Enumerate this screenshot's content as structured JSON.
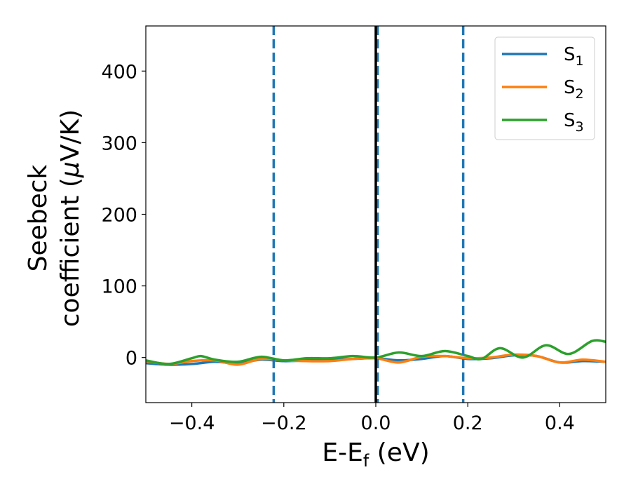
{
  "chart_data": {
    "type": "line",
    "xlabel": "E-E",
    "xlabel_sub": "f",
    "xlabel_unit": " (eV)",
    "ylabel_line1": "Seebeck",
    "ylabel_line2_prefix": "coefficient  (",
    "ylabel_mu": "μ",
    "ylabel_line2_suffix": "V/K)",
    "xlim": [
      -0.5,
      0.5
    ],
    "ylim": [
      -63,
      463
    ],
    "x_ticks": [
      -0.4,
      -0.2,
      0.0,
      0.2,
      0.4
    ],
    "x_tick_labels": [
      "−0.4",
      "−0.2",
      "0.0",
      "0.2",
      "0.4"
    ],
    "y_ticks": [
      0,
      100,
      200,
      300,
      400
    ],
    "y_tick_labels": [
      "0",
      "100",
      "200",
      "300",
      "400"
    ],
    "grid": false,
    "legend_position": "top-right",
    "vlines": [
      {
        "x": -0.222,
        "style": "dashed",
        "color": "#1f77b4"
      },
      {
        "x": 0.004,
        "style": "dashed",
        "color": "#1f77b4"
      },
      {
        "x": 0.19,
        "style": "dashed",
        "color": "#1f77b4"
      },
      {
        "x": 0.0,
        "style": "solid",
        "color": "#000000"
      }
    ],
    "series": [
      {
        "name": "S",
        "name_sub": "1",
        "color": "#1f77b4",
        "x": [
          -0.5,
          -0.45,
          -0.4,
          -0.35,
          -0.3,
          -0.25,
          -0.2,
          -0.15,
          -0.1,
          -0.05,
          0.0,
          0.05,
          0.1,
          0.15,
          0.2,
          0.25,
          0.3,
          0.35,
          0.4,
          0.45,
          0.5
        ],
        "y": [
          -8,
          -10,
          -9,
          -6,
          -8,
          -3,
          -5,
          -4,
          -3,
          -2,
          -1,
          -4,
          -2,
          2,
          -2,
          -1,
          3,
          2,
          -7,
          -5,
          -6
        ]
      },
      {
        "name": "S",
        "name_sub": "2",
        "color": "#ff7f0e",
        "x": [
          -0.5,
          -0.45,
          -0.4,
          -0.35,
          -0.3,
          -0.25,
          -0.2,
          -0.15,
          -0.1,
          -0.05,
          0.0,
          0.05,
          0.1,
          0.15,
          0.2,
          0.25,
          0.3,
          0.35,
          0.4,
          0.45,
          0.5
        ],
        "y": [
          -5,
          -9,
          -5,
          -4,
          -10,
          -2,
          -4,
          -5,
          -5,
          -2,
          -1,
          -7,
          1,
          2,
          -1,
          0,
          4,
          2,
          -7,
          -3,
          -6
        ]
      },
      {
        "name": "S",
        "name_sub": "3",
        "color": "#2ca02c",
        "x": [
          -0.5,
          -0.45,
          -0.4,
          -0.38,
          -0.35,
          -0.3,
          -0.25,
          -0.2,
          -0.15,
          -0.1,
          -0.05,
          0.0,
          0.05,
          0.1,
          0.15,
          0.2,
          0.23,
          0.27,
          0.32,
          0.37,
          0.42,
          0.47,
          0.5
        ],
        "y": [
          -4,
          -9,
          -1,
          2,
          -3,
          -6,
          1,
          -4,
          -1,
          -1,
          2,
          0,
          7,
          2,
          9,
          2,
          -2,
          13,
          0,
          17,
          5,
          23,
          22
        ]
      }
    ]
  }
}
